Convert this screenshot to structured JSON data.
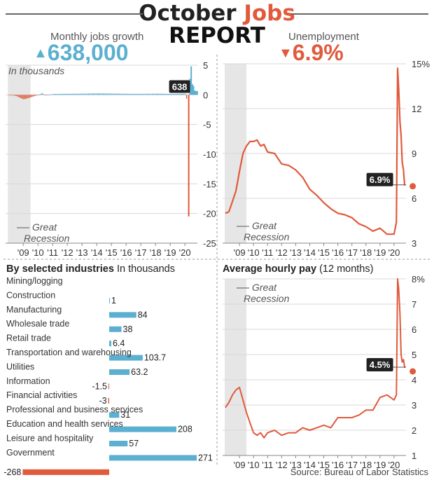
{
  "header": {
    "title_part1": "October",
    "title_part2": "Jobs",
    "title_line2": "REPORT"
  },
  "kpi": {
    "jobs_label": "Monthly jobs growth",
    "jobs_value": "638,000",
    "jobs_arrow": "▲",
    "unemp_label": "Unemployment",
    "unemp_value": "6.9%",
    "unemp_arrow": "▼",
    "up_color": "#5bafd0",
    "down_color": "#e05a3c"
  },
  "source": "Source: Bureau of Labor Statistics",
  "chart_data": [
    {
      "id": "jobs",
      "type": "bar",
      "note": "In thousands",
      "annotation": "638",
      "recession_label": [
        "Great",
        "Recession"
      ],
      "ylim": [
        -25,
        5
      ],
      "yticks": [
        5,
        0,
        -5,
        -10,
        -15,
        -20,
        -25
      ],
      "ytick_labels": [
        "5",
        "0",
        "-5",
        "-10",
        "-15",
        "-20",
        "-25"
      ],
      "xlim": [
        2007.8,
        2020.85
      ],
      "xtick_labels": [
        "'09",
        "'10",
        "'11",
        "'12",
        "'13",
        "'14",
        "'15",
        "'16",
        "'17",
        "'18",
        "'19",
        "'20"
      ],
      "xtick_years": [
        2009,
        2010,
        2011,
        2012,
        2013,
        2014,
        2015,
        2016,
        2017,
        2018,
        2019,
        2020
      ],
      "recession": [
        2007.95,
        2009.5
      ],
      "series": [
        {
          "x": [
            2008.0,
            2008.25,
            2008.5,
            2008.75,
            2009.0,
            2009.25,
            2009.5,
            2009.75,
            2010.0,
            2010.25,
            2010.5,
            2011,
            2012,
            2013,
            2014,
            2015,
            2016,
            2017,
            2018,
            2019,
            2020.0,
            2020.17
          ],
          "y": [
            -0.05,
            -0.1,
            -0.2,
            -0.5,
            -0.75,
            -0.6,
            -0.4,
            -0.2,
            -0.05,
            0.3,
            -0.1,
            0.15,
            0.18,
            0.2,
            0.25,
            0.22,
            0.18,
            0.17,
            0.2,
            0.17,
            0.2,
            -1.5
          ]
        }
      ],
      "spike": {
        "x": [
          2020.25,
          2020.33,
          2020.42,
          2020.5,
          2020.58,
          2020.67,
          2020.75,
          2020.83
        ],
        "y": [
          -20.5,
          2.7,
          4.8,
          1.8,
          1.5,
          0.7,
          0.64,
          0.638
        ]
      },
      "bar_color": "#5bafd0",
      "neg_color": "#e05a3c"
    },
    {
      "id": "unemployment",
      "type": "line",
      "ylim": [
        3,
        15
      ],
      "yticks": [
        15,
        12,
        9,
        6,
        3
      ],
      "ytick_labels": [
        "15%",
        "12",
        "9",
        "6",
        "3"
      ],
      "xlim": [
        2007.8,
        2020.85
      ],
      "xtick_labels": [
        "'09",
        "'10",
        "'11",
        "'12",
        "'13",
        "'14",
        "'15",
        "'16",
        "'17",
        "'18",
        "'19",
        "'20"
      ],
      "xtick_years": [
        2009,
        2010,
        2011,
        2012,
        2013,
        2014,
        2015,
        2016,
        2017,
        2018,
        2019,
        2020
      ],
      "recession": [
        2007.95,
        2009.5
      ],
      "recession_label": [
        "Great",
        "Recession"
      ],
      "annotation": "6.9%",
      "x": [
        2008.0,
        2008.25,
        2008.5,
        2008.75,
        2009.0,
        2009.25,
        2009.5,
        2009.75,
        2010.0,
        2010.25,
        2010.5,
        2010.75,
        2011.0,
        2011.5,
        2012.0,
        2012.5,
        2013.0,
        2013.5,
        2014.0,
        2014.5,
        2015.0,
        2015.5,
        2016.0,
        2016.5,
        2017.0,
        2017.5,
        2018.0,
        2018.5,
        2019.0,
        2019.5,
        2020.0,
        2020.17,
        2020.25,
        2020.33,
        2020.42,
        2020.5,
        2020.58,
        2020.67,
        2020.75,
        2020.83
      ],
      "y": [
        5.0,
        5.1,
        5.8,
        6.5,
        7.8,
        9.0,
        9.5,
        9.8,
        9.8,
        9.9,
        9.5,
        9.6,
        9.1,
        9.0,
        8.3,
        8.2,
        7.9,
        7.4,
        6.6,
        6.2,
        5.7,
        5.3,
        5.0,
        4.9,
        4.7,
        4.3,
        4.1,
        3.8,
        4.0,
        3.6,
        3.6,
        4.4,
        14.7,
        13.3,
        11.1,
        10.2,
        8.4,
        7.9,
        6.9,
        6.9
      ],
      "end_value": 6.9,
      "color": "#e05a3c"
    },
    {
      "id": "industries",
      "type": "bar",
      "title": "By selected industries",
      "subtitle": "In thousands",
      "categories": [
        "Mining/logging",
        "Construction",
        "Manufacturing",
        "Wholesale trade",
        "Retail trade",
        "Transportation and warehousing",
        "Utilities",
        "Information",
        "Financial activities",
        "Professional and business services",
        "Education and health services",
        "Leisure and hospitality",
        "Government"
      ],
      "values": [
        1,
        84,
        38,
        6.4,
        103.7,
        63.2,
        -1.5,
        -3,
        31,
        208,
        57,
        271,
        -268
      ],
      "value_labels": [
        "1",
        "84",
        "38",
        "6.4",
        "103.7",
        "63.2",
        "-1.5",
        "-3",
        "31",
        "208",
        "57",
        "271",
        "-268"
      ],
      "pos_color": "#5bafd0",
      "neg_color": "#e05a3c"
    },
    {
      "id": "hourly_pay",
      "type": "line",
      "title": "Average hourly pay",
      "subtitle": "(12 months)",
      "ylim": [
        1,
        8
      ],
      "yticks": [
        8,
        7,
        6,
        5,
        4,
        3,
        2,
        1
      ],
      "ytick_labels": [
        "8%",
        "7",
        "6",
        "5",
        "4",
        "3",
        "2",
        "1"
      ],
      "xlim": [
        2007.8,
        2020.85
      ],
      "xtick_labels": [
        "'09",
        "'10",
        "'11",
        "'12",
        "'13",
        "'14",
        "'15",
        "'16",
        "'17",
        "'18",
        "'19",
        "'20"
      ],
      "xtick_years": [
        2009,
        2010,
        2011,
        2012,
        2013,
        2014,
        2015,
        2016,
        2017,
        2018,
        2019,
        2020
      ],
      "recession": [
        2007.95,
        2009.5
      ],
      "recession_label": [
        "Great",
        "Recession"
      ],
      "annotation": "4.5%",
      "x": [
        2008.0,
        2008.25,
        2008.5,
        2008.75,
        2009.0,
        2009.25,
        2009.5,
        2009.75,
        2010.0,
        2010.25,
        2010.5,
        2010.75,
        2011.0,
        2011.5,
        2012.0,
        2012.5,
        2013.0,
        2013.5,
        2014.0,
        2014.5,
        2015.0,
        2015.5,
        2016.0,
        2016.5,
        2017.0,
        2017.5,
        2018.0,
        2018.5,
        2019.0,
        2019.5,
        2020.0,
        2020.17,
        2020.25,
        2020.33,
        2020.42,
        2020.5,
        2020.58,
        2020.67,
        2020.75,
        2020.83
      ],
      "y": [
        2.9,
        3.1,
        3.4,
        3.6,
        3.7,
        3.2,
        2.7,
        2.3,
        1.9,
        1.8,
        1.9,
        1.7,
        1.9,
        2.0,
        1.8,
        1.9,
        1.9,
        2.1,
        2.0,
        2.1,
        2.2,
        2.1,
        2.5,
        2.5,
        2.5,
        2.6,
        2.8,
        2.8,
        3.3,
        3.4,
        3.2,
        3.4,
        8.0,
        7.6,
        6.6,
        5.0,
        4.7,
        4.8,
        4.5,
        4.5
      ],
      "end_value": 4.5,
      "color": "#e05a3c"
    }
  ]
}
